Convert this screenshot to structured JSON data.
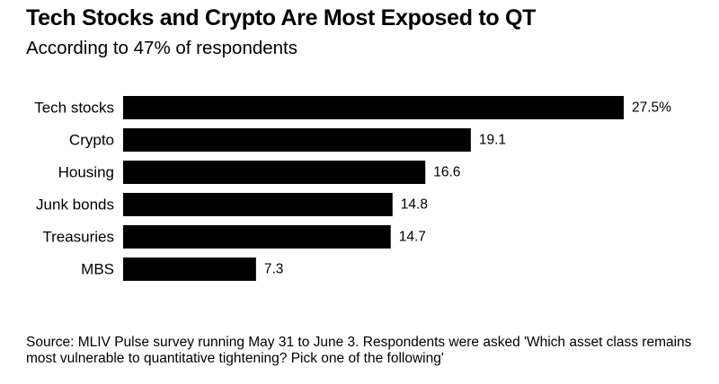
{
  "chart_data": {
    "type": "bar",
    "orientation": "horizontal",
    "title": "Tech Stocks and Crypto Are Most Exposed to QT",
    "subtitle": "According to 47% of respondents",
    "categories": [
      "Tech stocks",
      "Crypto",
      "Housing",
      "Junk bonds",
      "Treasuries",
      "MBS"
    ],
    "values": [
      27.5,
      19.1,
      16.6,
      14.8,
      14.7,
      7.3
    ],
    "value_labels": [
      "27.5%",
      "19.1",
      "16.6",
      "14.8",
      "14.7",
      "7.3"
    ],
    "xlim": [
      0,
      27.5
    ],
    "xlabel": "",
    "ylabel": "",
    "grid": false,
    "bar_color": "#000000",
    "source": "Source: MLIV Pulse survey running May 31 to June 3. Respondents were asked 'Which asset class remains most vulnerable to quantitative tightening? Pick one of the following'"
  }
}
